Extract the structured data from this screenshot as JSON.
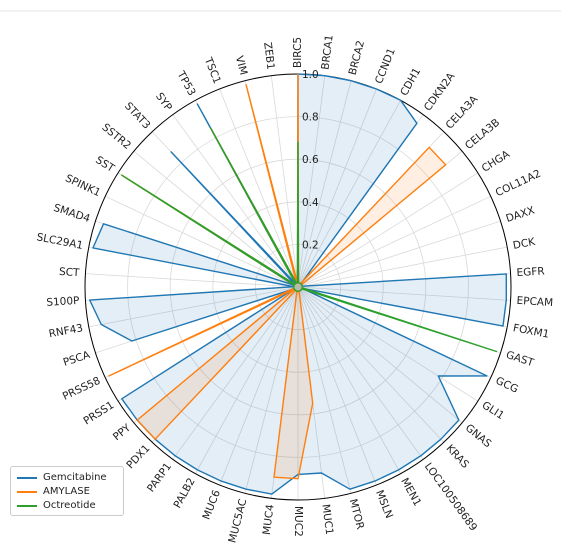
{
  "chart_data": {
    "type": "radar",
    "categories": [
      "BIRC5",
      "BRCA1",
      "BRCA2",
      "CCND1",
      "CDH1",
      "CDKN2A",
      "CELA3A",
      "CELA3B",
      "CHGA",
      "COL11A2",
      "DAXX",
      "DCK",
      "EGFR",
      "EPCAM",
      "FOXM1",
      "GAST",
      "GCG",
      "GLI1",
      "GNAS",
      "KRAS",
      "LOC100508689",
      "MEN1",
      "MSLN",
      "MTOR",
      "MUC1",
      "MUC2",
      "MUC4",
      "MUC5AC",
      "MUC6",
      "PALB2",
      "PARP1",
      "PDX1",
      "PPY",
      "PRSS1",
      "PRSS58",
      "PSCA",
      "RNF43",
      "S100P",
      "SCT",
      "SLC29A1",
      "SMAD4",
      "SPINK1",
      "SST",
      "SSTR2",
      "STAT3",
      "SYP",
      "TP53",
      "TSC1",
      "VIM",
      "ZEB1"
    ],
    "radial_ticks": [
      "0.2",
      "0.4",
      "0.6",
      "0.8",
      "1.0"
    ],
    "rlim": [
      0,
      1.0
    ],
    "grid": true,
    "legend_position": "lower-left",
    "series": [
      {
        "name": "Gemcitabine",
        "color": "#1f77b4",
        "values": [
          1.0,
          1.0,
          1.0,
          1.0,
          1.0,
          0.95,
          0.02,
          0.02,
          0.02,
          0.02,
          0.02,
          0.02,
          0.98,
          0.98,
          0.98,
          0.02,
          0.98,
          0.78,
          0.98,
          0.98,
          0.98,
          0.98,
          0.98,
          0.98,
          0.88,
          0.88,
          0.98,
          0.98,
          0.98,
          0.98,
          0.98,
          0.98,
          0.98,
          0.98,
          0.02,
          0.82,
          0.94,
          0.98,
          0.02,
          0.98,
          0.96,
          0.02,
          0.68,
          0.02,
          0.87,
          0.02,
          0.98,
          0.02,
          0.02,
          0.02
        ]
      },
      {
        "name": "AMYLASE",
        "color": "#ff7f0e",
        "values": [
          1.0,
          0.02,
          0.02,
          0.02,
          0.02,
          0.02,
          0.9,
          0.9,
          0.02,
          0.02,
          0.02,
          0.02,
          0.02,
          0.02,
          0.02,
          0.02,
          0.02,
          0.02,
          0.02,
          0.02,
          0.02,
          0.02,
          0.02,
          0.02,
          0.55,
          0.9,
          0.9,
          0.02,
          0.02,
          0.02,
          0.02,
          0.98,
          0.98,
          0.02,
          0.98,
          0.02,
          0.02,
          0.02,
          0.02,
          0.02,
          0.02,
          0.02,
          0.98,
          0.02,
          0.02,
          0.02,
          0.85,
          0.02,
          0.98,
          0.02
        ]
      },
      {
        "name": "Octreotide",
        "color": "#2ca02c",
        "values": [
          0.68,
          0.02,
          0.02,
          0.02,
          0.02,
          0.02,
          0.02,
          0.02,
          0.02,
          0.02,
          0.02,
          0.02,
          0.02,
          0.02,
          0.02,
          0.98,
          0.02,
          0.02,
          0.02,
          0.02,
          0.02,
          0.02,
          0.02,
          0.02,
          0.02,
          0.02,
          0.02,
          0.02,
          0.02,
          0.02,
          0.02,
          0.02,
          0.02,
          0.02,
          0.02,
          0.02,
          0.02,
          0.02,
          0.02,
          0.02,
          0.02,
          0.02,
          0.98,
          0.02,
          0.02,
          0.02,
          0.85,
          0.02,
          0.02,
          0.02
        ]
      }
    ]
  }
}
